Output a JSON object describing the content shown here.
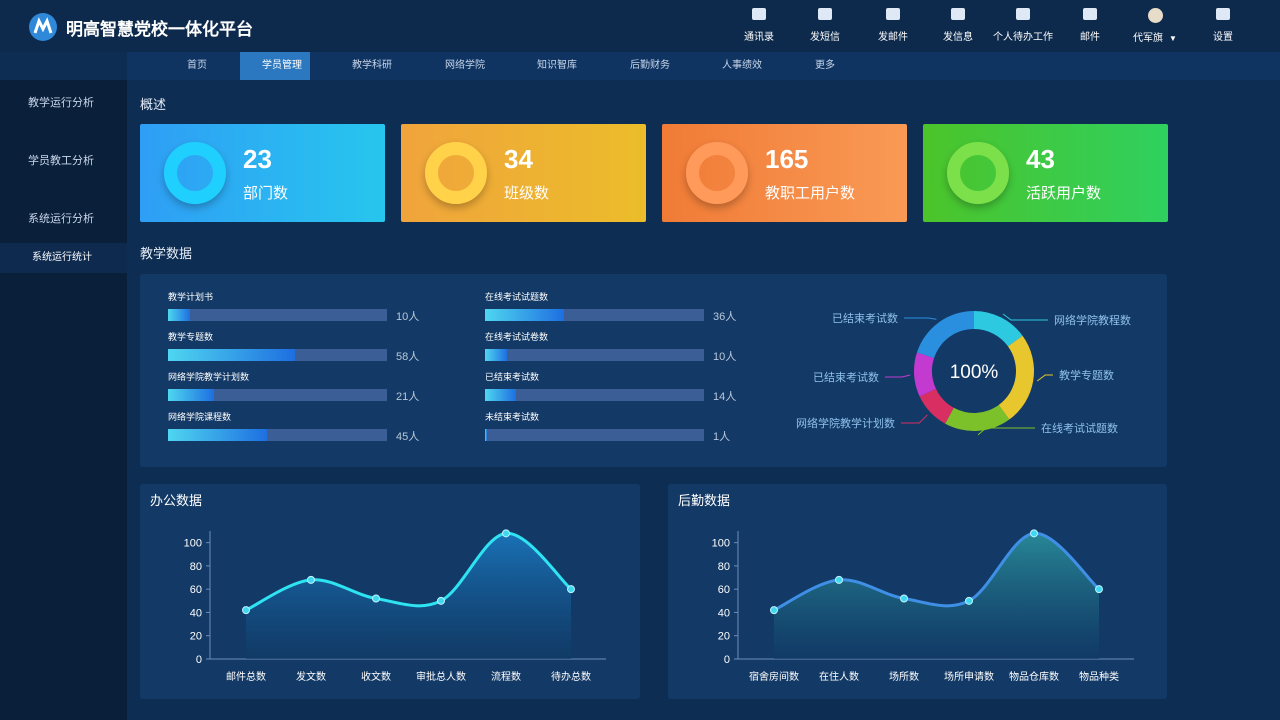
{
  "header": {
    "title": "明高智慧党校一体化平台",
    "tools": [
      "通讯录",
      "发短信",
      "发邮件",
      "发信息",
      "个人待办工作",
      "邮件",
      "代军旗",
      "设置"
    ]
  },
  "nav": {
    "items": [
      "首页",
      "学员管理",
      "教学科研",
      "网络学院",
      "知识智库",
      "后勤财务",
      "人事绩效",
      "更多"
    ],
    "active": 1
  },
  "sidebar": {
    "items": [
      "教学运行分析",
      "学员教工分析",
      "系统运行分析",
      "系统运行统计"
    ]
  },
  "overview": {
    "title": "概述",
    "cards": [
      {
        "value": 23,
        "label": "部门数"
      },
      {
        "value": 34,
        "label": "班级数"
      },
      {
        "value": 165,
        "label": "教职工用户数"
      },
      {
        "value": 43,
        "label": "活跃用户数"
      }
    ]
  },
  "teaching": {
    "title": "教学数据",
    "bars": {
      "type": "bar",
      "xlim": [
        0,
        100
      ],
      "categories": [
        "教学计划书",
        "教学专题数",
        "网络学院教学计划数",
        "网络学院课程数",
        "在线考试试题数",
        "在线考试试卷数",
        "已结束考试数",
        "未结束考试数"
      ],
      "values": [
        10,
        58,
        21,
        45,
        36,
        10,
        14,
        1
      ],
      "value_labels": [
        "10人",
        "58人",
        "21人",
        "45人",
        "36人",
        "10人",
        "14人",
        "1人"
      ]
    },
    "donut": {
      "type": "pie",
      "center_label": "100%",
      "series": [
        {
          "name": "网络学院教程数",
          "color": "#2cc9e0",
          "value": 15
        },
        {
          "name": "教学专题数",
          "color": "#e8c62e",
          "value": 25
        },
        {
          "name": "在线考试试题数",
          "color": "#7cc02a",
          "value": 18
        },
        {
          "name": "网络学院教学计划数",
          "color": "#d92e62",
          "value": 10
        },
        {
          "name": "已结束考试数",
          "color": "#c23ad0",
          "value": 12
        },
        {
          "name": "已结束考试数",
          "color": "#2b8fe0",
          "value": 20
        }
      ]
    }
  },
  "office": {
    "type": "line",
    "title": "办公数据",
    "color": "#2fe4f2",
    "categories": [
      "邮件总数",
      "发文数",
      "收文数",
      "审批总人数",
      "流程数",
      "待办总数"
    ],
    "values": [
      42,
      68,
      52,
      50,
      108,
      60
    ],
    "ylim": [
      0,
      110
    ],
    "yticks": [
      0,
      20,
      40,
      60,
      80,
      100
    ]
  },
  "logistics": {
    "type": "line",
    "title": "后勤数据",
    "color": "#3f8fe6",
    "categories": [
      "宿舍房间数",
      "在住人数",
      "场所数",
      "场所申请数",
      "物品仓库数",
      "物品种类"
    ],
    "values": [
      42,
      68,
      52,
      50,
      108,
      60
    ],
    "ylim": [
      0,
      110
    ],
    "yticks": [
      0,
      20,
      40,
      60,
      80,
      100
    ]
  }
}
